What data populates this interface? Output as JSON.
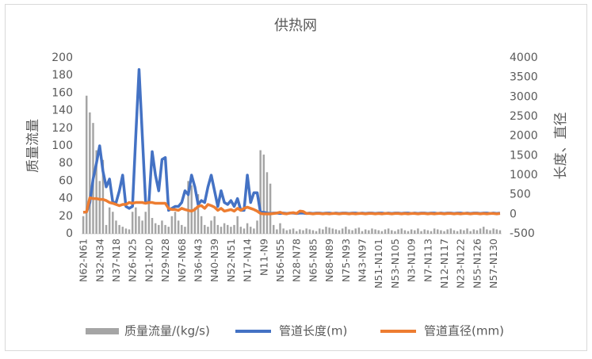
{
  "chart_data": {
    "type": "combo",
    "title": "供热网",
    "y_label": "质量流量",
    "y2_label": "长度、直径",
    "categories": [
      "N62-N61",
      null,
      null,
      null,
      null,
      "N32-N34",
      null,
      null,
      null,
      null,
      "N37-N18",
      null,
      null,
      null,
      null,
      "N26-N25",
      null,
      null,
      null,
      null,
      "N21-N20",
      null,
      null,
      null,
      null,
      "N29-N28",
      null,
      null,
      null,
      null,
      "N67-N68",
      null,
      null,
      null,
      null,
      "N36-N43",
      null,
      null,
      null,
      null,
      "N40-N39",
      null,
      null,
      null,
      null,
      "N52-N51",
      null,
      null,
      null,
      null,
      "N17-N14",
      null,
      null,
      null,
      null,
      "N11-N9",
      null,
      null,
      null,
      null,
      "N56-N55",
      null,
      null,
      null,
      null,
      "N28-N78",
      null,
      null,
      null,
      null,
      "N65-N85",
      null,
      null,
      null,
      null,
      "N68-N89",
      null,
      null,
      null,
      null,
      "N75-N93",
      null,
      null,
      null,
      null,
      "N43-N97",
      null,
      null,
      null,
      null,
      "N51-N101",
      null,
      null,
      null,
      null,
      "N53-N105",
      null,
      null,
      null,
      null,
      "N3-N109",
      null,
      null,
      null,
      null,
      "N7-N113",
      null,
      null,
      null,
      null,
      "N12-N117",
      null,
      null,
      null,
      null,
      "N23-N122",
      null,
      null,
      null,
      null,
      "N55-N126",
      null,
      null,
      null,
      null,
      "N57-N130",
      null,
      null
    ],
    "series": [
      {
        "name": "质量流量/(kg/s)",
        "type": "bar",
        "axis": "y",
        "color": "#a5a5a5",
        "values": [
          20,
          157,
          138,
          126,
          95,
          60,
          84,
          10,
          30,
          25,
          15,
          10,
          8,
          6,
          5,
          25,
          30,
          20,
          15,
          25,
          35,
          18,
          12,
          10,
          15,
          10,
          8,
          20,
          25,
          15,
          10,
          8,
          60,
          55,
          30,
          45,
          20,
          10,
          8,
          15,
          20,
          10,
          8,
          12,
          10,
          8,
          10,
          20,
          8,
          6,
          12,
          8,
          6,
          15,
          95,
          90,
          70,
          57,
          10,
          5,
          12,
          6,
          4,
          5,
          6,
          3,
          5,
          4,
          6,
          5,
          4,
          3,
          6,
          5,
          8,
          7,
          6,
          5,
          4,
          6,
          8,
          5,
          4,
          6,
          7,
          3,
          5,
          4,
          6,
          5,
          4,
          3,
          5,
          6,
          4,
          3,
          5,
          6,
          4,
          3,
          5,
          4,
          6,
          3,
          5,
          4,
          3,
          6,
          5,
          4,
          3,
          5,
          6,
          4,
          3,
          5,
          4,
          6,
          3,
          5,
          4,
          6,
          8,
          5,
          4,
          6,
          5,
          4
        ]
      },
      {
        "name": "管道长度(m)",
        "type": "line",
        "axis": "y2",
        "color": "#4472c4",
        "values": [
          50,
          60,
          300,
          900,
          1300,
          1750,
          1100,
          700,
          900,
          300,
          300,
          600,
          1000,
          200,
          150,
          200,
          2000,
          3700,
          2000,
          300,
          300,
          1600,
          1000,
          600,
          1400,
          1450,
          100,
          150,
          200,
          200,
          300,
          600,
          500,
          1000,
          700,
          250,
          350,
          300,
          700,
          1000,
          600,
          200,
          600,
          300,
          250,
          350,
          200,
          400,
          100,
          100,
          1000,
          300,
          550,
          550,
          50,
          50,
          30,
          20,
          30,
          30,
          20,
          30,
          20,
          30,
          30,
          20,
          30,
          30,
          20,
          30,
          20,
          30,
          30,
          20,
          30,
          30,
          20,
          30,
          20,
          30,
          30,
          20,
          30,
          30,
          20,
          30,
          20,
          30,
          30,
          20,
          30,
          30,
          20,
          30,
          20,
          30,
          30,
          20,
          30,
          30,
          20,
          30,
          20,
          30,
          30,
          20,
          30,
          30,
          20,
          30,
          20,
          30,
          30,
          20,
          30,
          30,
          20,
          30,
          20,
          30,
          30,
          20,
          30,
          30,
          20,
          30,
          20,
          30
        ]
      },
      {
        "name": "管道直径(mm)",
        "type": "line",
        "axis": "y2",
        "color": "#ed7d31",
        "values": [
          50,
          60,
          420,
          400,
          400,
          380,
          380,
          350,
          300,
          280,
          250,
          220,
          250,
          250,
          300,
          280,
          300,
          300,
          300,
          280,
          300,
          300,
          280,
          280,
          280,
          280,
          150,
          120,
          120,
          100,
          150,
          120,
          100,
          80,
          120,
          200,
          220,
          150,
          250,
          220,
          180,
          100,
          150,
          80,
          100,
          120,
          80,
          150,
          100,
          150,
          180,
          150,
          120,
          80,
          20,
          10,
          10,
          10,
          20,
          30,
          50,
          20,
          10,
          30,
          40,
          20,
          80,
          70,
          20,
          20,
          10,
          20,
          20,
          10,
          20,
          10,
          20,
          20,
          10,
          20,
          20,
          10,
          20,
          10,
          20,
          20,
          10,
          20,
          20,
          10,
          20,
          10,
          20,
          20,
          10,
          20,
          20,
          10,
          20,
          10,
          20,
          20,
          10,
          20,
          20,
          10,
          20,
          10,
          20,
          20,
          10,
          20,
          20,
          10,
          20,
          10,
          20,
          20,
          10,
          20,
          20,
          10,
          20,
          10,
          20,
          20,
          10,
          20
        ]
      }
    ],
    "ylim": [
      0,
      200
    ],
    "yticks": [
      0,
      20,
      40,
      60,
      80,
      100,
      120,
      140,
      160,
      180,
      200
    ],
    "y2lim": [
      -500,
      4000
    ],
    "y2ticks": [
      -500,
      0,
      500,
      1000,
      1500,
      2000,
      2500,
      3000,
      3500,
      4000
    ],
    "legend": "bottom"
  }
}
